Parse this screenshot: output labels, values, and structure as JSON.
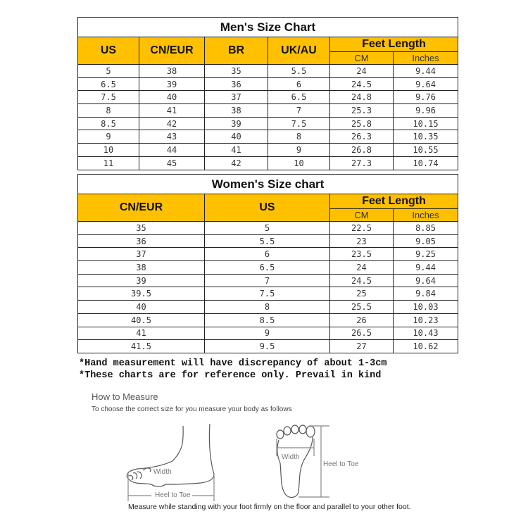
{
  "men": {
    "title": "Men's Size Chart",
    "headers": [
      "US",
      "CN/EUR",
      "BR",
      "UK/AU"
    ],
    "feet_length": "Feet Length",
    "sub_headers": [
      "CM",
      "Inches"
    ],
    "rows": [
      [
        "5",
        "38",
        "35",
        "5.5",
        "24",
        "9.44"
      ],
      [
        "6.5",
        "39",
        "36",
        "6",
        "24.5",
        "9.64"
      ],
      [
        "7.5",
        "40",
        "37",
        "6.5",
        "24.8",
        "9.76"
      ],
      [
        "8",
        "41",
        "38",
        "7",
        "25.3",
        "9.96"
      ],
      [
        "8.5",
        "42",
        "39",
        "7.5",
        "25.8",
        "10.15"
      ],
      [
        "9",
        "43",
        "40",
        "8",
        "26.3",
        "10.35"
      ],
      [
        "10",
        "44",
        "41",
        "9",
        "26.8",
        "10.55"
      ],
      [
        "11",
        "45",
        "42",
        "10",
        "27.3",
        "10.74"
      ]
    ]
  },
  "women": {
    "title": "Women's Size chart",
    "headers": [
      "CN/EUR",
      "US"
    ],
    "feet_length": "Feet Length",
    "sub_headers": [
      "CM",
      "Inches"
    ],
    "rows": [
      [
        "35",
        "5",
        "22.5",
        "8.85"
      ],
      [
        "36",
        "5.5",
        "23",
        "9.05"
      ],
      [
        "37",
        "6",
        "23.5",
        "9.25"
      ],
      [
        "38",
        "6.5",
        "24",
        "9.44"
      ],
      [
        "39",
        "7",
        "24.5",
        "9.64"
      ],
      [
        "39.5",
        "7.5",
        "25",
        "9.84"
      ],
      [
        "40",
        "8",
        "25.5",
        "10.03"
      ],
      [
        "40.5",
        "8.5",
        "26",
        "10.23"
      ],
      [
        "41",
        "9",
        "26.5",
        "10.43"
      ],
      [
        "41.5",
        "9.5",
        "27",
        "10.62"
      ]
    ]
  },
  "notes": [
    "*Hand measurement will have discrepancy of about 1-3cm",
    "*These charts are for reference only. Prevail in kind"
  ],
  "how_to_measure": {
    "title": "How to Measure",
    "subtitle": "To choose the correct size for you measure your body as follows",
    "side_width_label": "Width",
    "side_length_label": "Heel to Toe",
    "top_width_label": "Width",
    "top_length_label": "Heel to Toe",
    "caption": "Measure while standing with your foot firmly on the floor and parallel to your other foot."
  },
  "colors": {
    "header_bg": "#ffc000"
  }
}
